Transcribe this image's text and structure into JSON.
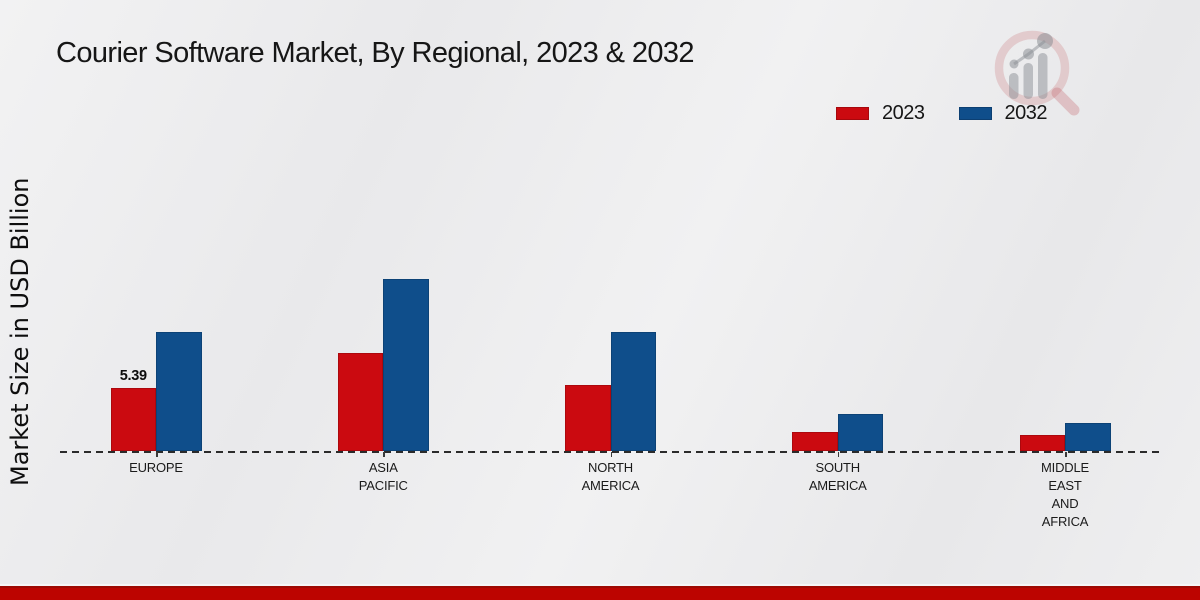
{
  "page": {
    "title": "Courier Software Market, By Regional, 2023 & 2032"
  },
  "ylabel": "Market Size in USD Billion",
  "legend": {
    "items": [
      {
        "label": "2023",
        "color": "#cb0a10"
      },
      {
        "label": "2032",
        "color": "#0f4e8b"
      }
    ]
  },
  "watermark": {
    "icon": "magnifier-bar-chart-logo"
  },
  "chart_data": {
    "type": "bar",
    "title": "Courier Software Market, By Regional, 2023 & 2032",
    "ylabel": "Market Size in USD Billion",
    "xlabel": "",
    "categories": [
      "EUROPE",
      "ASIA PACIFIC",
      "NORTH AMERICA",
      "SOUTH AMERICA",
      "MIDDLE EAST AND AFRICA"
    ],
    "category_label_lines": [
      [
        "EUROPE"
      ],
      [
        "ASIA",
        "PACIFIC"
      ],
      [
        "NORTH",
        "AMERICA"
      ],
      [
        "SOUTH",
        "AMERICA"
      ],
      [
        "MIDDLE",
        "EAST",
        "AND",
        "AFRICA"
      ]
    ],
    "series": [
      {
        "name": "2023",
        "color": "#cb0a10",
        "values": [
          5.39,
          8.4,
          5.7,
          1.7,
          1.4
        ]
      },
      {
        "name": "2032",
        "color": "#0f4e8b",
        "values": [
          10.2,
          14.7,
          10.2,
          3.2,
          2.4
        ]
      }
    ],
    "data_labels": [
      {
        "series": "2023",
        "category": "EUROPE",
        "text": "5.39"
      }
    ],
    "ylim": [
      0,
      16
    ],
    "gridlines": false,
    "baseline_style": "dashed",
    "legend_position": "top-right",
    "y_axis_tick_labels_visible": false
  },
  "colors": {
    "background": "#ececee",
    "bottom_strip": "#bc0400",
    "baseline": "#2b2b2b",
    "text": "#141414"
  }
}
